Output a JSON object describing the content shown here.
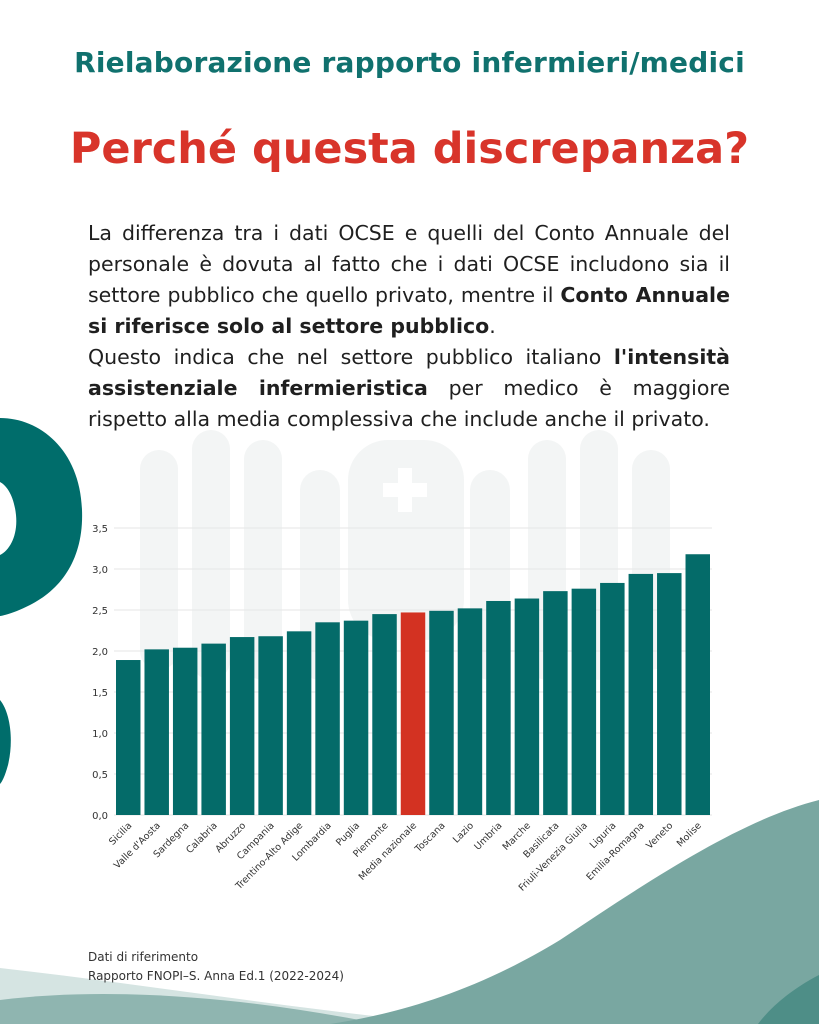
{
  "header": {
    "title": "Rielaborazione rapporto infermieri/medici"
  },
  "main": {
    "title": "Perché questa discrepanza?",
    "paragraph1": {
      "part1": "La differenza tra i dati OCSE e quelli del Conto Annuale del personale è dovuta al fatto che i dati OCSE includono sia il settore pubblico che quello privato, mentre il ",
      "bold": "Conto Annuale si riferisce solo al settore pubblico",
      "part2": "."
    },
    "paragraph2": {
      "part1": "Questo indica che nel settore pubblico italiano ",
      "bold": "l'intensità assistenziale infermieristica",
      "part2": " per medico è maggiore rispetto alla media complessiva che include anche il privato."
    }
  },
  "chart_data": {
    "type": "bar",
    "categories": [
      "Sicilia",
      "Valle d'Aosta",
      "Sardegna",
      "Calabria",
      "Abruzzo",
      "Campania",
      "Trentino-Alto Adige",
      "Lombardia",
      "Puglia",
      "Piemonte",
      "Media nazionale",
      "Toscana",
      "Lazio",
      "Umbria",
      "Marche",
      "Basilicata",
      "Friuli-Venezia Giulia",
      "Liguria",
      "Emilia-Romagna",
      "Veneto",
      "Molise"
    ],
    "values": [
      1.89,
      2.02,
      2.04,
      2.09,
      2.17,
      2.18,
      2.24,
      2.35,
      2.37,
      2.45,
      2.47,
      2.49,
      2.52,
      2.61,
      2.64,
      2.73,
      2.76,
      2.83,
      2.94,
      2.95,
      3.18
    ],
    "highlight": "Media nazionale",
    "title": "",
    "xlabel": "",
    "ylabel": "",
    "ylim": [
      0,
      3.5
    ],
    "yticks": [
      "0,0",
      "0,5",
      "1,0",
      "1,5",
      "2,0",
      "2,5",
      "3,0",
      "3,5"
    ],
    "grid": true,
    "colors": {
      "bar": "#046b69",
      "highlight": "#d33222",
      "grid": "#e6e6e6"
    }
  },
  "source": {
    "line1": "Dati di riferimento",
    "line2": "Rapporto FNOPI–S. Anna Ed.1 (2022-2024)"
  },
  "colors": {
    "header": "#10716e",
    "title": "#d8342a",
    "accent_teal": "#006d6b",
    "wave": "#79a7a1"
  }
}
